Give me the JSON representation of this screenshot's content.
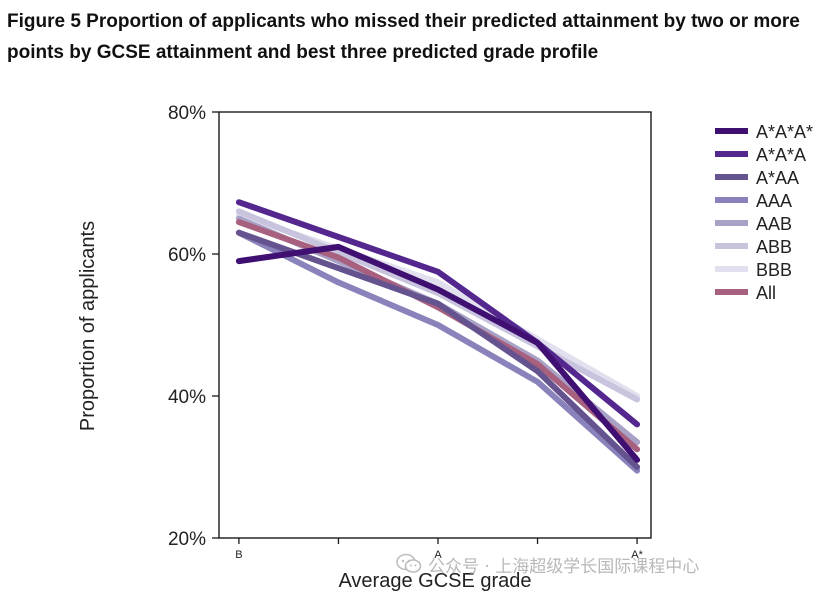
{
  "figure": {
    "title": "Figure 5 Proportion of applicants who missed their predicted attainment by two or more points by GCSE attainment and best three predicted grade profile"
  },
  "chart_data": {
    "type": "line",
    "title": "Figure 5 Proportion of applicants who missed their predicted attainment by two or more points by GCSE attainment and best three predicted grade profile",
    "xlabel": "Average GCSE grade",
    "ylabel": "Proportion of applicants",
    "x_ticks": [
      "B",
      "A",
      "A*"
    ],
    "x_positions": [
      0,
      1,
      2
    ],
    "yticks": [
      20,
      40,
      60,
      80
    ],
    "ytick_labels": [
      "20%",
      "40%",
      "60%",
      "80%"
    ],
    "ylim": [
      20,
      80
    ],
    "xlim": [
      -0.1,
      2.07
    ],
    "grid": false,
    "legend_position": "right",
    "series": [
      {
        "name": "A*A*A*",
        "color": "#3f0f72",
        "x": [
          0,
          0.5,
          1,
          1.5,
          2
        ],
        "values": [
          59.0,
          61.0,
          55.0,
          47.5,
          31.0
        ]
      },
      {
        "name": "A*A*A",
        "color": "#54278f",
        "x": [
          0,
          1,
          1.5,
          2
        ],
        "values": [
          67.3,
          57.5,
          47.5,
          36.0
        ]
      },
      {
        "name": "A*AA",
        "color": "#64538f",
        "x": [
          0,
          1,
          1.5,
          2
        ],
        "values": [
          63.0,
          53.0,
          43.5,
          30.0
        ]
      },
      {
        "name": "AAA",
        "color": "#8a83bb",
        "x": [
          0,
          0.5,
          1,
          1.5,
          2
        ],
        "values": [
          63.0,
          56.0,
          50.0,
          42.0,
          29.5
        ]
      },
      {
        "name": "AAB",
        "color": "#a9a2c7",
        "x": [
          0,
          0.5,
          1,
          1.5,
          2
        ],
        "values": [
          65.0,
          59.0,
          53.0,
          45.0,
          33.5
        ]
      },
      {
        "name": "ABB",
        "color": "#c9c4de",
        "x": [
          0,
          1,
          1.5,
          2
        ],
        "values": [
          66.0,
          54.5,
          47.0,
          39.5
        ]
      },
      {
        "name": "BBB",
        "color": "#e2e0ee",
        "x": [
          0,
          1,
          2
        ],
        "values": [
          65.5,
          56.0,
          40.0
        ]
      },
      {
        "name": "All",
        "color": "#a8607f",
        "x": [
          0,
          0.5,
          1,
          1.5,
          2
        ],
        "values": [
          64.5,
          59.5,
          52.5,
          44.5,
          32.5
        ]
      }
    ]
  },
  "watermark": {
    "text": "公众号 · 上海超级学长国际课程中心",
    "icon": "wechat-icon"
  }
}
